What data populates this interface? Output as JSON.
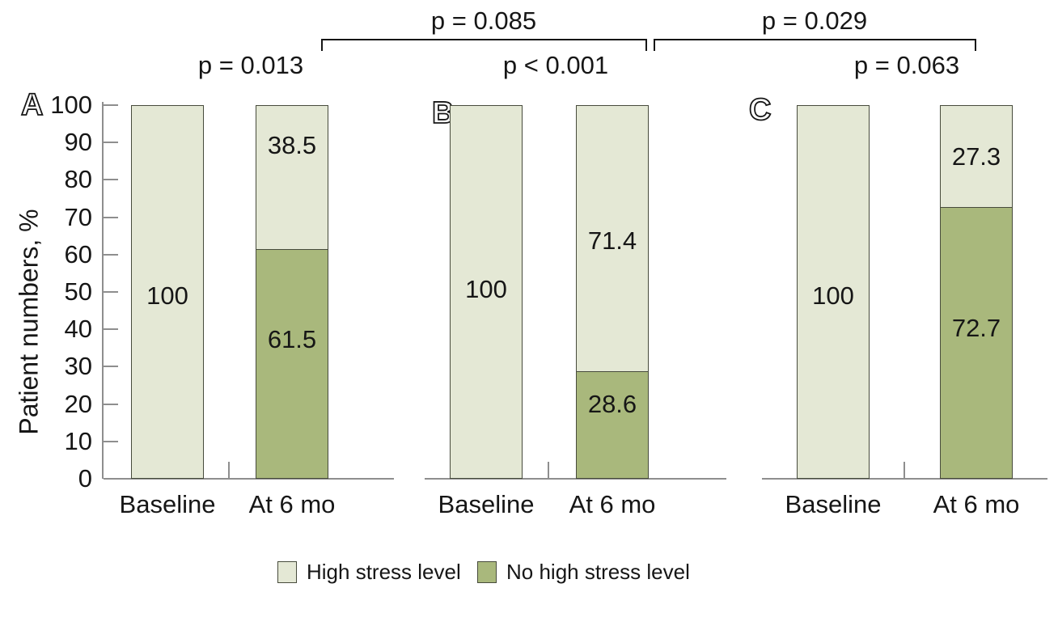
{
  "chart_data": {
    "type": "bar",
    "stacked": true,
    "unit": "percent",
    "ylabel": "Patient numbers, %",
    "ylim": [
      0,
      100
    ],
    "yticks": [
      0,
      10,
      20,
      30,
      40,
      50,
      60,
      70,
      80,
      90,
      100
    ],
    "categories": [
      "Baseline",
      "At 6 mo"
    ],
    "series_names": [
      "High stress level",
      "No high stress level"
    ],
    "panels": [
      {
        "label": "A",
        "p_value": "p = 0.013",
        "bars": [
          {
            "category": "Baseline",
            "segments": [
              {
                "series": "High stress level",
                "value": 100
              }
            ]
          },
          {
            "category": "At 6 mo",
            "segments": [
              {
                "series": "High stress level",
                "value": 38.5
              },
              {
                "series": "No high stress level",
                "value": 61.5
              }
            ]
          }
        ]
      },
      {
        "label": "B",
        "p_value": "p < 0.001",
        "bars": [
          {
            "category": "Baseline",
            "segments": [
              {
                "series": "High stress level",
                "value": 100
              }
            ]
          },
          {
            "category": "At 6 mo",
            "segments": [
              {
                "series": "High stress level",
                "value": 71.4
              },
              {
                "series": "No high stress level",
                "value": 28.6
              }
            ]
          }
        ]
      },
      {
        "label": "C",
        "p_value": "p = 0.063",
        "bars": [
          {
            "category": "Baseline",
            "segments": [
              {
                "series": "High stress level",
                "value": 100
              }
            ]
          },
          {
            "category": "At 6 mo",
            "segments": [
              {
                "series": "High stress level",
                "value": 27.3
              },
              {
                "series": "No high stress level",
                "value": 72.7
              }
            ]
          }
        ]
      }
    ],
    "comparison_brackets": [
      {
        "label": "p = 0.085",
        "spans": [
          "A At 6 mo",
          "B At 6 mo"
        ]
      },
      {
        "label": "p = 0.029",
        "spans": [
          "B At 6 mo",
          "C At 6 mo"
        ]
      }
    ],
    "legend": [
      {
        "label": "High stress level",
        "color": "#e4e8d5"
      },
      {
        "label": "No high stress level",
        "color": "#a9b87c"
      }
    ],
    "legend_position": "bottom",
    "colors": {
      "high_stress": "#e4e8d5",
      "no_high_stress": "#a9b87c",
      "bar_border": "#474b3c",
      "axis": "#8e8e8e",
      "text": "#161616"
    }
  }
}
